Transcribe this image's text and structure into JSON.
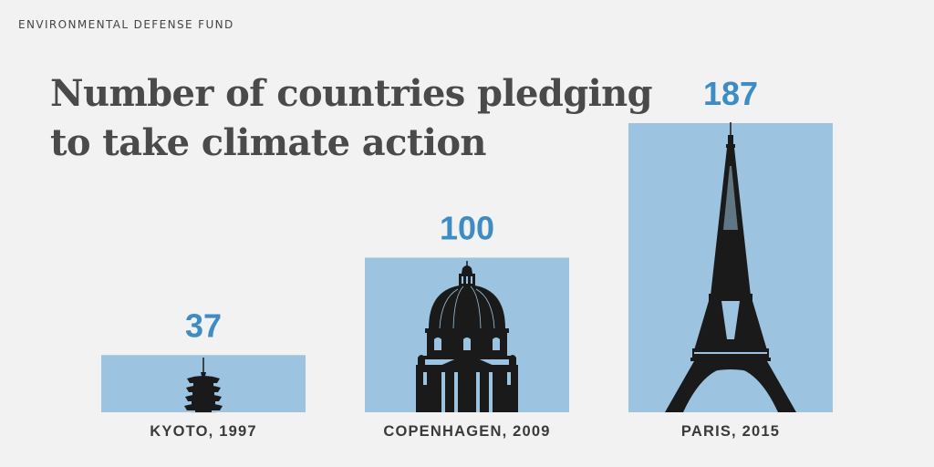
{
  "source": "ENVIRONMENTAL DEFENSE FUND",
  "chart_data": {
    "type": "bar",
    "title_lines": [
      "Number of countries pledging",
      "to take climate action"
    ],
    "categories": [
      "KYOTO, 1997",
      "COPENHAGEN, 2009",
      "PARIS, 2015"
    ],
    "values": [
      37,
      100,
      187
    ],
    "value_labels": [
      "37",
      "100",
      "187"
    ],
    "landmarks": [
      "pagoda-icon",
      "dome-icon",
      "eiffel-tower-icon"
    ],
    "xlabel": "",
    "ylabel": "",
    "ylim": [
      0,
      187
    ],
    "grid": false,
    "colors": {
      "bar": "#9cc3df",
      "value": "#3d8cc4",
      "category": "#3a3a3a",
      "landmark": "#1a1a1a"
    }
  }
}
